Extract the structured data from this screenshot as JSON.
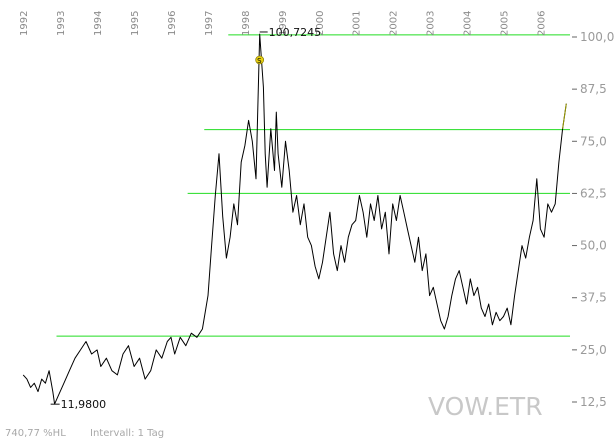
{
  "chart_data": {
    "type": "line",
    "symbol": "VOW.ETR",
    "footer": {
      "left": "740,77 %HL",
      "right": "Intervall: 1 Tag"
    },
    "x_ticks": [
      "1992",
      "1993",
      "1994",
      "1995",
      "1996",
      "1997",
      "1998",
      "1999",
      "2000",
      "2001",
      "2002",
      "2003",
      "2004",
      "2005",
      "2006"
    ],
    "y_ticks": [
      "100,0",
      "87,5",
      "75,0",
      "62,5",
      "50,0",
      "37,5",
      "25,0",
      "12,5"
    ],
    "y_tick_values": [
      100,
      87.5,
      75,
      62.5,
      50,
      37.5,
      25,
      12.5
    ],
    "ylim": [
      12.5,
      100
    ],
    "xlim": [
      1991.75,
      2006.8
    ],
    "annotations": {
      "high": {
        "label": "100,7245",
        "x": 1998.4,
        "y": 100.7245
      },
      "low": {
        "label": "11,9800",
        "x": 1992.85,
        "y": 11.98
      },
      "marker": {
        "label": "S",
        "x": 1998.4,
        "y": 94.5
      }
    },
    "horizontal_lines": [
      {
        "y": 100.5,
        "x_start": 1997.55
      },
      {
        "y": 77.8,
        "x_start": 1996.9
      },
      {
        "y": 62.5,
        "x_start": 1996.45
      },
      {
        "y": 28.3,
        "x_start": 1992.9
      }
    ],
    "colors": {
      "price": "#000000",
      "lines": "#22dd22",
      "recent_price": "#9a9a00"
    },
    "series": [
      {
        "x": [
          1992.0,
          1992.1,
          1992.2,
          1992.3,
          1992.4,
          1992.5,
          1992.6,
          1992.7,
          1992.8,
          1992.85,
          1992.95,
          1993.1,
          1993.25,
          1993.4,
          1993.55,
          1993.7,
          1993.85,
          1994.0,
          1994.1,
          1994.25,
          1994.4,
          1994.55,
          1994.7,
          1994.85,
          1995.0,
          1995.15,
          1995.3,
          1995.45,
          1995.6,
          1995.75,
          1995.9,
          1996.0,
          1996.1,
          1996.25,
          1996.4,
          1996.55,
          1996.7,
          1996.85,
          1997.0,
          1997.1,
          1997.2,
          1997.3,
          1997.4,
          1997.5,
          1997.6,
          1997.7,
          1997.8,
          1997.9,
          1998.0,
          1998.1,
          1998.2,
          1998.3,
          1998.4,
          1998.5,
          1998.55,
          1998.6,
          1998.7,
          1998.8,
          1998.85,
          1998.9,
          1999.0,
          1999.1,
          1999.2,
          1999.3,
          1999.4,
          1999.5,
          1999.6,
          1999.7,
          1999.8,
          1999.9,
          2000.0,
          2000.1,
          2000.2,
          2000.3,
          2000.4,
          2000.5,
          2000.6,
          2000.7,
          2000.8,
          2000.9,
          2001.0,
          2001.1,
          2001.2,
          2001.3,
          2001.4,
          2001.5,
          2001.6,
          2001.7,
          2001.8,
          2001.9,
          2002.0,
          2002.1,
          2002.2,
          2002.3,
          2002.4,
          2002.5,
          2002.6,
          2002.7,
          2002.8,
          2002.9,
          2003.0,
          2003.1,
          2003.2,
          2003.3,
          2003.4,
          2003.5,
          2003.6,
          2003.7,
          2003.8,
          2003.9,
          2004.0,
          2004.1,
          2004.2,
          2004.3,
          2004.4,
          2004.5,
          2004.6,
          2004.7,
          2004.8,
          2004.9,
          2005.0,
          2005.1,
          2005.2,
          2005.3,
          2005.4,
          2005.5,
          2005.6,
          2005.7,
          2005.8,
          2005.9,
          2006.0,
          2006.1,
          2006.2,
          2006.3,
          2006.4,
          2006.5,
          2006.6,
          2006.7
        ],
        "y": [
          19,
          18,
          16,
          17,
          15,
          18,
          17,
          20,
          15,
          12,
          14,
          17,
          20,
          23,
          25,
          27,
          24,
          25,
          21,
          23,
          20,
          19,
          24,
          26,
          21,
          23,
          18,
          20,
          25,
          23,
          27,
          28,
          24,
          28,
          26,
          29,
          28,
          30,
          38,
          50,
          62,
          72,
          57,
          47,
          52,
          60,
          55,
          70,
          74,
          80,
          75,
          66,
          100.7,
          88,
          72,
          64,
          78,
          68,
          82,
          72,
          64,
          75,
          68,
          58,
          62,
          55,
          60,
          52,
          50,
          45,
          42,
          46,
          52,
          58,
          48,
          44,
          50,
          46,
          52,
          55,
          56,
          62,
          58,
          52,
          60,
          56,
          62,
          54,
          58,
          48,
          60,
          56,
          62,
          58,
          54,
          50,
          46,
          52,
          44,
          48,
          38,
          40,
          36,
          32,
          30,
          33,
          38,
          42,
          44,
          40,
          36,
          42,
          38,
          40,
          35,
          33,
          36,
          31,
          34,
          32,
          33,
          35,
          31,
          38,
          44,
          50,
          47,
          52,
          56,
          66,
          54,
          52,
          60,
          58,
          60,
          70,
          78,
          84
        ]
      }
    ]
  }
}
